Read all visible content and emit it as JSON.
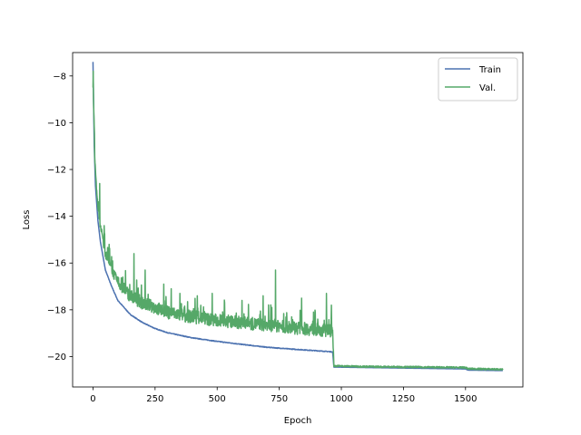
{
  "chart_data": {
    "type": "line",
    "xlabel": "Epoch",
    "ylabel": "Loss",
    "xlim": [
      -82,
      1731
    ],
    "ylim": [
      -21.3,
      -7.0
    ],
    "xticks": [
      0,
      250,
      500,
      750,
      1000,
      1250,
      1500
    ],
    "yticks": [
      -20,
      -18,
      -16,
      -14,
      -12,
      -10,
      -8
    ],
    "xtick_labels": [
      "0",
      "250",
      "500",
      "750",
      "1000",
      "1250",
      "1500"
    ],
    "ytick_labels": [
      "−20",
      "−18",
      "−16",
      "−14",
      "−12",
      "−10",
      "−8"
    ],
    "grid": false,
    "legend_position": "top-right",
    "n_epochs": 1650,
    "series": [
      {
        "name": "Train",
        "color": "#4c72b0",
        "keypoints": [
          [
            0,
            -7.4
          ],
          [
            5,
            -11.0
          ],
          [
            10,
            -12.7
          ],
          [
            20,
            -14.2
          ],
          [
            30,
            -15.1
          ],
          [
            50,
            -16.3
          ],
          [
            75,
            -17.0
          ],
          [
            100,
            -17.6
          ],
          [
            150,
            -18.2
          ],
          [
            200,
            -18.55
          ],
          [
            250,
            -18.8
          ],
          [
            300,
            -18.98
          ],
          [
            400,
            -19.2
          ],
          [
            500,
            -19.35
          ],
          [
            600,
            -19.48
          ],
          [
            700,
            -19.6
          ],
          [
            800,
            -19.68
          ],
          [
            900,
            -19.75
          ],
          [
            965,
            -19.8
          ],
          [
            970,
            -20.45
          ],
          [
            1100,
            -20.47
          ],
          [
            1300,
            -20.5
          ],
          [
            1500,
            -20.53
          ],
          [
            1510,
            -20.58
          ],
          [
            1650,
            -20.6
          ]
        ]
      },
      {
        "name": "Val.",
        "color": "#55a868",
        "keypoints": [
          [
            0,
            -8.5
          ],
          [
            3,
            -9.4
          ],
          [
            6,
            -11.2
          ],
          [
            12,
            -12.5
          ],
          [
            20,
            -13.6
          ],
          [
            30,
            -14.6
          ],
          [
            50,
            -15.7
          ],
          [
            75,
            -16.4
          ],
          [
            100,
            -17.0
          ],
          [
            150,
            -17.6
          ],
          [
            200,
            -17.9
          ],
          [
            250,
            -18.1
          ],
          [
            300,
            -18.3
          ],
          [
            400,
            -18.5
          ],
          [
            500,
            -18.65
          ],
          [
            600,
            -18.75
          ],
          [
            700,
            -18.85
          ],
          [
            800,
            -18.95
          ],
          [
            900,
            -19.05
          ],
          [
            965,
            -19.1
          ],
          [
            970,
            -20.4
          ],
          [
            1100,
            -20.43
          ],
          [
            1300,
            -20.45
          ],
          [
            1500,
            -20.47
          ],
          [
            1510,
            -20.52
          ],
          [
            1650,
            -20.55
          ]
        ],
        "spikes": [
          [
            1,
            -7.8
          ],
          [
            27,
            -12.6
          ],
          [
            45,
            -14.4
          ],
          [
            65,
            -15.2
          ],
          [
            120,
            -16.6
          ],
          [
            165,
            -15.6
          ],
          [
            210,
            -16.3
          ],
          [
            285,
            -16.9
          ],
          [
            315,
            -17.1
          ],
          [
            350,
            -17.3
          ],
          [
            420,
            -17.4
          ],
          [
            480,
            -17.3
          ],
          [
            530,
            -17.7
          ],
          [
            600,
            -17.6
          ],
          [
            685,
            -17.4
          ],
          [
            720,
            -17.9
          ],
          [
            735,
            -16.3
          ],
          [
            800,
            -18.3
          ],
          [
            840,
            -17.5
          ],
          [
            905,
            -18.4
          ],
          [
            940,
            -17.3
          ],
          [
            960,
            -17.8
          ]
        ]
      }
    ]
  }
}
